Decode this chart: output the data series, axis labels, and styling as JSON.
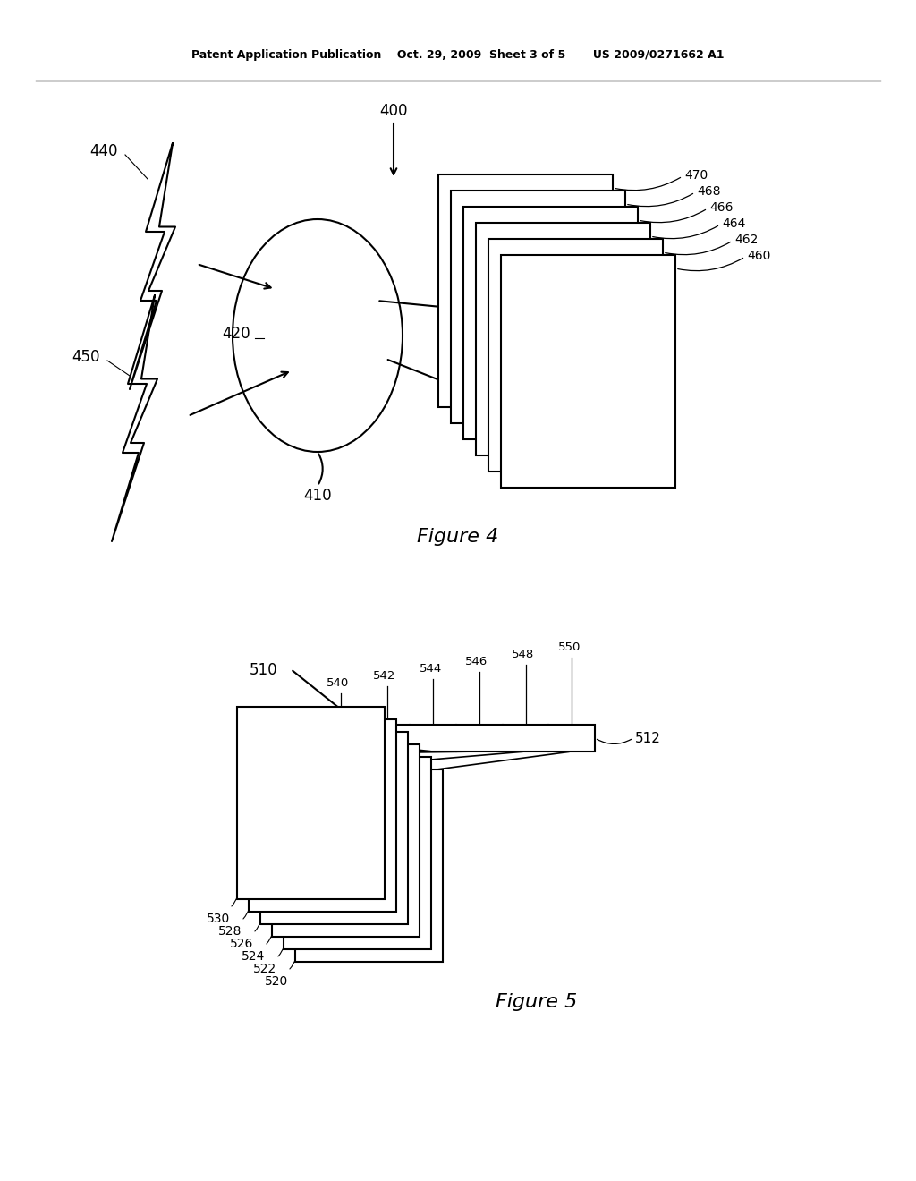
{
  "bg_color": "#ffffff",
  "line_color": "#000000",
  "header_line1": "Patent Application Publication",
  "header_line2": "Oct. 29, 2009  Sheet 3 of 5",
  "header_line3": "US 2009/0271662 A1",
  "fig4_label": "Figure 4",
  "fig5_label": "Figure 5"
}
